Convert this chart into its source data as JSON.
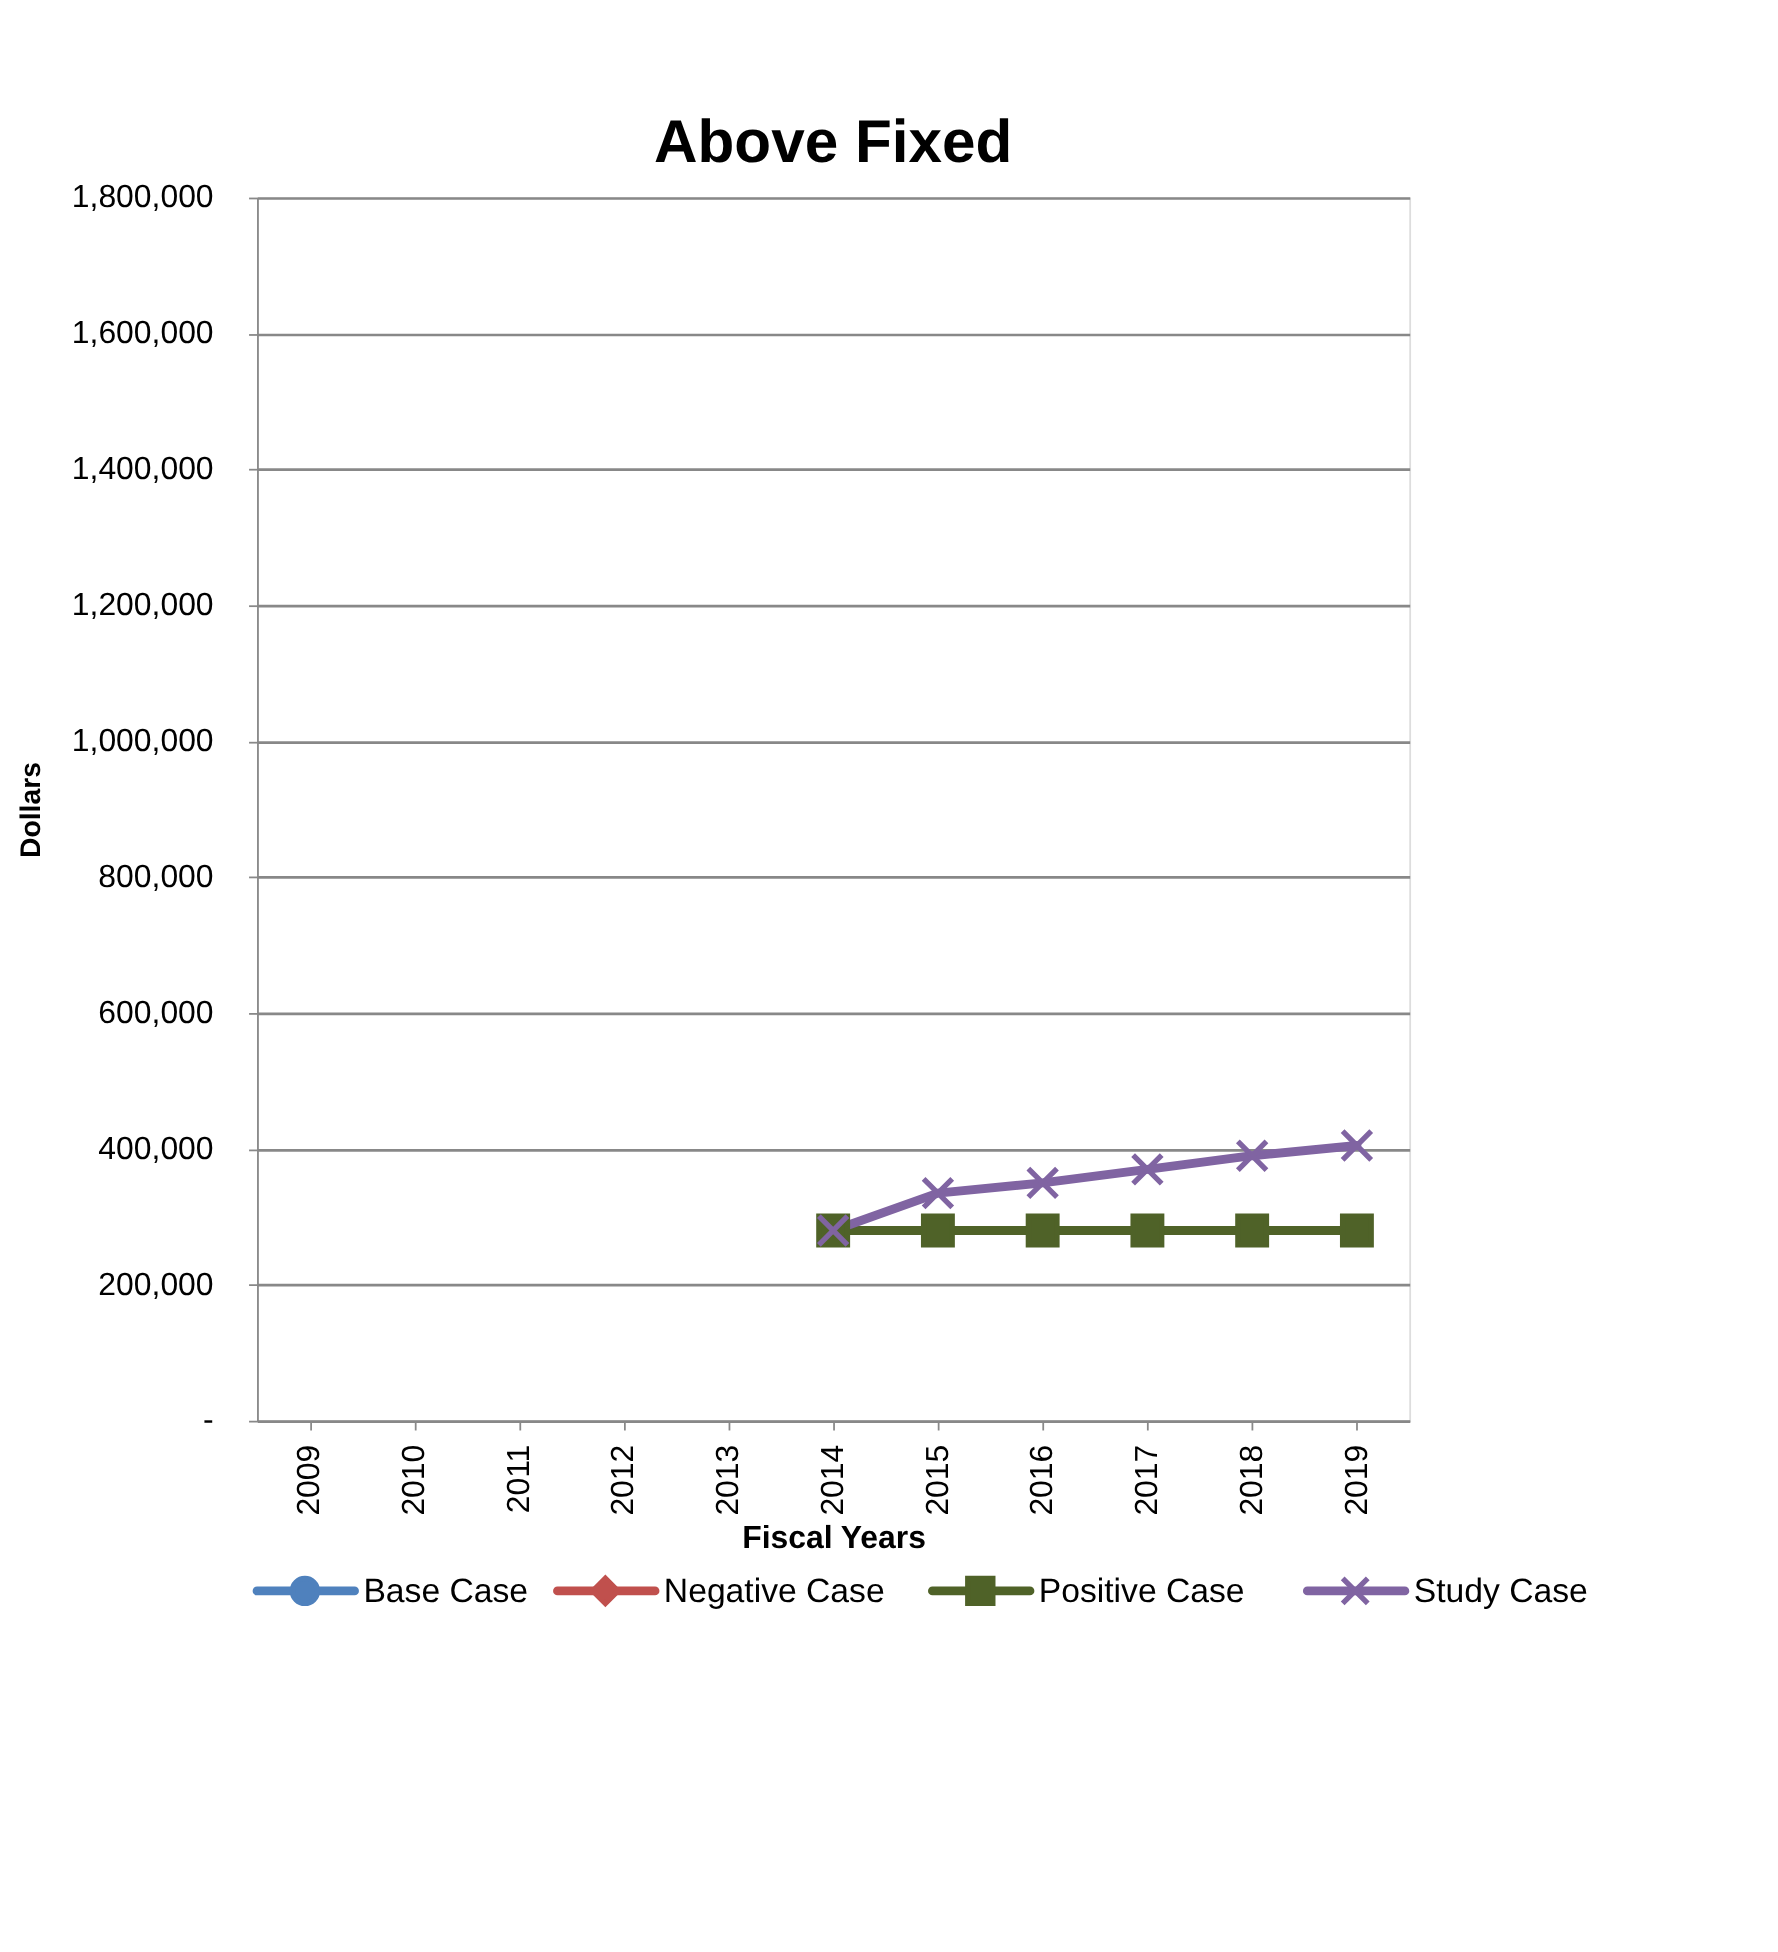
{
  "chart_data": {
    "type": "line",
    "title": "Above Fixed",
    "xlabel": "Fiscal Years",
    "ylabel": "Dollars",
    "categories": [
      "2009",
      "2010",
      "2011",
      "2012",
      "2013",
      "2014",
      "2015",
      "2016",
      "2017",
      "2018",
      "2019"
    ],
    "series": [
      {
        "name": "Base Case",
        "color": "#4f81bd",
        "marker": "circle",
        "values": [
          null,
          null,
          null,
          null,
          null,
          null,
          null,
          null,
          null,
          null,
          null
        ]
      },
      {
        "name": "Negative Case",
        "color": "#c0504d",
        "marker": "diamond",
        "values": [
          null,
          null,
          null,
          null,
          null,
          null,
          null,
          null,
          null,
          null,
          null
        ]
      },
      {
        "name": "Positive Case",
        "color": "#4f6228",
        "marker": "square",
        "values": [
          null,
          null,
          null,
          null,
          null,
          280000,
          280000,
          280000,
          280000,
          280000,
          280000
        ]
      },
      {
        "name": "Study Case",
        "color": "#8064a2",
        "marker": "cross",
        "values": [
          null,
          null,
          null,
          null,
          null,
          280000,
          335000,
          350000,
          370000,
          390000,
          405000
        ]
      }
    ],
    "ylim": [
      0,
      1800000
    ],
    "yticks": [
      {
        "value": 0,
        "label": "-"
      },
      {
        "value": 200000,
        "label": "200,000"
      },
      {
        "value": 400000,
        "label": "400,000"
      },
      {
        "value": 600000,
        "label": "600,000"
      },
      {
        "value": 800000,
        "label": "800,000"
      },
      {
        "value": 1000000,
        "label": "1,000,000"
      },
      {
        "value": 1200000,
        "label": "1,200,000"
      },
      {
        "value": 1400000,
        "label": "1,400,000"
      },
      {
        "value": 1600000,
        "label": "1,600,000"
      },
      {
        "value": 1800000,
        "label": "1,800,000"
      }
    ],
    "grid": "y",
    "legend": "bottom",
    "line_style": "solid"
  }
}
